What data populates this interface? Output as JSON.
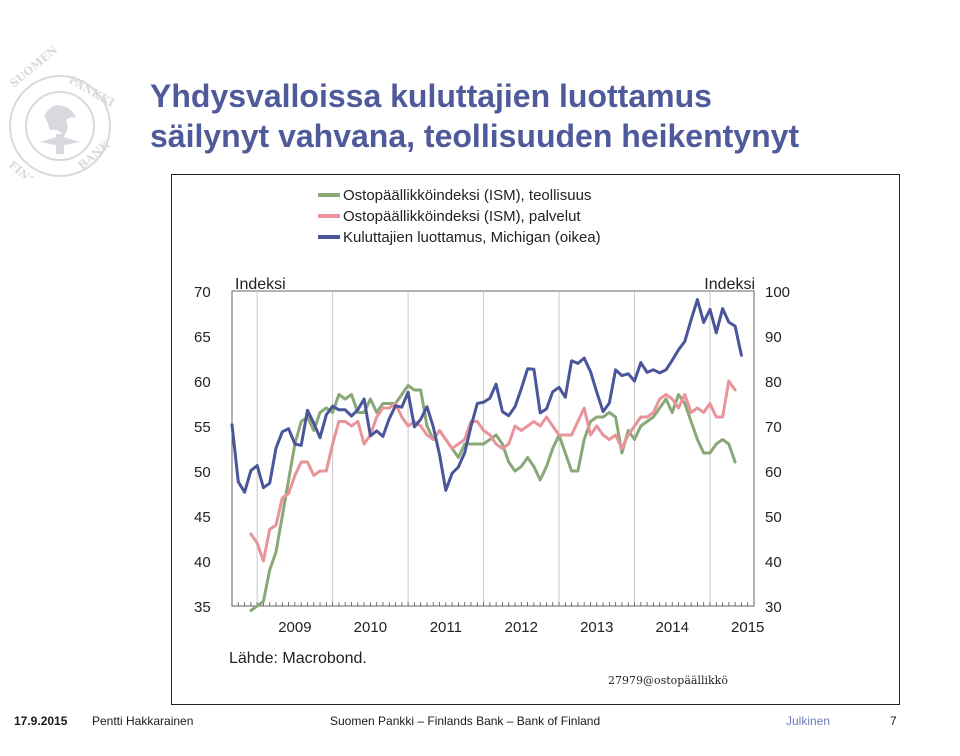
{
  "slide": {
    "title_line1": "Yhdysvalloissa kuluttajien luottamus",
    "title_line2": "säilynyt vahvana, teollisuuden heikentynyt"
  },
  "footer": {
    "date": "17.9.2015",
    "author": "Pentti Hakkarainen",
    "organization": "Suomen Pankki – Finlands Bank – Bank of Finland",
    "classification": "Julkinen",
    "page": "7"
  },
  "colors": {
    "title": "#4f5a9b",
    "ism_manufacturing": "#8aa877",
    "ism_services": "#e8949a",
    "michigan": "#4a559a",
    "seal": "#d8d9de"
  },
  "chart_data": {
    "type": "line",
    "left_axis": {
      "label": "Indeksi",
      "range": [
        35,
        70
      ],
      "ticks": [
        35,
        40,
        45,
        50,
        55,
        60,
        65,
        70
      ]
    },
    "right_axis": {
      "label": "Indeksi",
      "range": [
        30,
        100
      ],
      "ticks": [
        30,
        40,
        50,
        60,
        70,
        80,
        90,
        100
      ]
    },
    "x_axis": {
      "ticks": [
        "2009",
        "2010",
        "2011",
        "2012",
        "2013",
        "2014",
        "2015"
      ],
      "start": "2008-09",
      "end": "2015-08"
    },
    "source": "Lähde: Macrobond.",
    "code": "27979@ostopäällikkö",
    "legend_position": "top",
    "series": [
      {
        "name": "Ostopäällikköindeksi (ISM), teollisuus",
        "axis": "left",
        "color_key": "ism_manufacturing",
        "start": "2008-12",
        "values": [
          34.5,
          35.0,
          35.5,
          39.0,
          41.0,
          45.0,
          49.0,
          53.0,
          55.5,
          56.0,
          54.5,
          56.5,
          57.0,
          56.5,
          58.5,
          58.0,
          58.5,
          56.5,
          56.5,
          58.0,
          56.5,
          57.5,
          57.5,
          57.5,
          58.5,
          59.5,
          59.0,
          59.0,
          55.0,
          53.5,
          54.5,
          53.5,
          52.5,
          51.5,
          53.0,
          53.0,
          53.0,
          53.0,
          53.5,
          54.0,
          53.0,
          51.0,
          50.0,
          50.5,
          51.5,
          50.5,
          49.0,
          50.5,
          52.5,
          54.0,
          52.0,
          50.0,
          50.0,
          53.5,
          55.5,
          56.0,
          56.0,
          56.5,
          56.0,
          52.0,
          54.5,
          53.5,
          55.0,
          55.5,
          56.0,
          57.0,
          58.0,
          56.5,
          58.5,
          57.5,
          55.5,
          53.5,
          52.0,
          52.0,
          53.0,
          53.5,
          53.0,
          51.0
        ]
      },
      {
        "name": "Ostopäällikköindeksi (ISM), palvelut",
        "axis": "left",
        "color_key": "ism_services",
        "start": "2008-12",
        "values": [
          43.0,
          42.0,
          40.0,
          43.5,
          44.0,
          47.0,
          47.5,
          49.5,
          51.0,
          51.0,
          49.5,
          50.0,
          50.0,
          53.0,
          55.5,
          55.5,
          55.0,
          55.5,
          53.0,
          54.0,
          56.0,
          57.0,
          57.0,
          57.5,
          56.0,
          55.0,
          55.5,
          55.0,
          54.0,
          53.5,
          54.5,
          53.5,
          52.5,
          53.0,
          53.5,
          55.5,
          55.5,
          54.5,
          54.0,
          53.0,
          52.5,
          53.0,
          55.0,
          54.5,
          55.0,
          55.5,
          55.0,
          56.0,
          55.0,
          54.0,
          54.0,
          54.0,
          55.5,
          57.0,
          54.0,
          55.0,
          54.0,
          53.5,
          54.0,
          52.5,
          54.0,
          55.0,
          56.0,
          56.0,
          56.5,
          58.0,
          58.5,
          58.0,
          57.0,
          58.5,
          56.5,
          57.0,
          56.5,
          57.5,
          56.0,
          56.0,
          60.0,
          59.0
        ]
      },
      {
        "name": "Kuluttajien luottamus, Michigan (oikea)",
        "axis": "right",
        "color_key": "michigan",
        "start": "2008-09",
        "values": [
          70.3,
          57.6,
          55.3,
          60.1,
          61.2,
          56.3,
          57.3,
          65.1,
          68.7,
          69.4,
          66.0,
          65.7,
          73.5,
          70.6,
          67.4,
          72.5,
          74.4,
          73.6,
          73.6,
          72.2,
          73.6,
          76.0,
          67.8,
          68.9,
          67.7,
          71.6,
          74.5,
          74.2,
          77.5,
          69.8,
          71.5,
          74.3,
          69.8,
          63.7,
          55.7,
          59.5,
          60.9,
          64.1,
          69.9,
          75.0,
          75.3,
          76.2,
          79.3,
          73.2,
          72.3,
          74.3,
          78.3,
          82.7,
          82.6,
          72.9,
          73.8,
          77.6,
          78.6,
          76.4,
          84.5,
          83.9,
          85.1,
          82.1,
          77.5,
          73.2,
          75.1,
          82.5,
          81.2,
          81.6,
          80.0,
          84.1,
          81.9,
          82.5,
          81.8,
          82.5,
          84.6,
          86.9,
          88.8,
          93.6,
          98.1,
          93.0,
          95.9,
          90.7,
          96.1,
          93.1,
          92.2,
          85.7
        ]
      }
    ]
  }
}
